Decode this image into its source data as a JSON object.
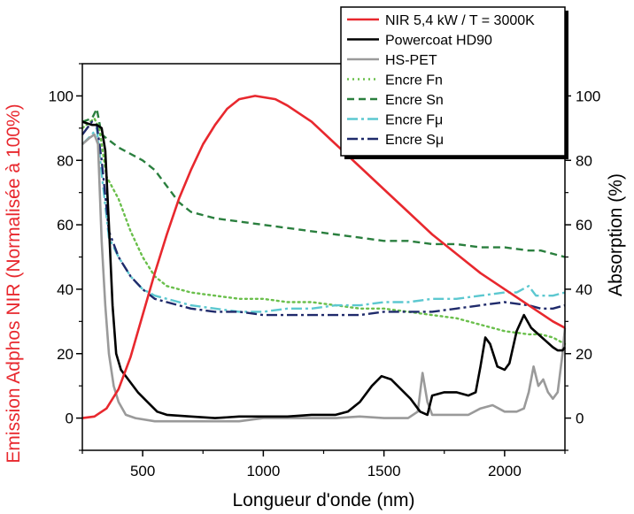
{
  "chart_data": {
    "type": "line",
    "xlabel": "Longueur d'onde (nm)",
    "ylabel_left": "Emission Adphos NIR (Normalisée à 100%)",
    "ylabel_right": "Absorption (%)",
    "xlim": [
      250,
      2250
    ],
    "ylim_left": [
      -10,
      110
    ],
    "ylim_right": [
      -10,
      110
    ],
    "x_ticks": [
      500,
      1000,
      1500,
      2000
    ],
    "y_ticks_left": [
      0,
      20,
      40,
      60,
      80,
      100
    ],
    "y_ticks_right": [
      0,
      20,
      40,
      60,
      80,
      100
    ],
    "legend_position": "top-right",
    "colors": {
      "nir": "#e8282e",
      "powercoat": "#000000",
      "hspet": "#9a9a9a",
      "fn": "#6abf4b",
      "sn": "#2a7f3e",
      "fmu": "#5cc8d0",
      "smu": "#1f2a6b",
      "left_axis": "#e8282e"
    },
    "series": [
      {
        "name": "NIR 5,4 kW / T = 3000K",
        "axis": "left",
        "style": "solid",
        "color": "#e8282e",
        "points": [
          [
            250,
            0
          ],
          [
            300,
            0.5
          ],
          [
            350,
            3
          ],
          [
            400,
            9
          ],
          [
            450,
            19
          ],
          [
            500,
            32
          ],
          [
            550,
            45
          ],
          [
            600,
            57
          ],
          [
            650,
            68
          ],
          [
            700,
            77
          ],
          [
            750,
            85
          ],
          [
            800,
            91
          ],
          [
            850,
            96
          ],
          [
            900,
            99
          ],
          [
            966,
            100
          ],
          [
            1050,
            99
          ],
          [
            1100,
            97
          ],
          [
            1200,
            92
          ],
          [
            1300,
            85
          ],
          [
            1400,
            78
          ],
          [
            1500,
            71
          ],
          [
            1600,
            64
          ],
          [
            1700,
            57
          ],
          [
            1800,
            51
          ],
          [
            1900,
            45
          ],
          [
            2000,
            40
          ],
          [
            2100,
            35
          ],
          [
            2200,
            30
          ],
          [
            2250,
            28
          ]
        ]
      },
      {
        "name": "Powercoat HD90",
        "axis": "right",
        "style": "solid",
        "color": "#000000",
        "points": [
          [
            250,
            92
          ],
          [
            290,
            91
          ],
          [
            310,
            91
          ],
          [
            330,
            90
          ],
          [
            345,
            83
          ],
          [
            360,
            60
          ],
          [
            375,
            35
          ],
          [
            390,
            20
          ],
          [
            410,
            15
          ],
          [
            440,
            12
          ],
          [
            480,
            8
          ],
          [
            520,
            5
          ],
          [
            560,
            2
          ],
          [
            600,
            1
          ],
          [
            700,
            0.5
          ],
          [
            800,
            0
          ],
          [
            900,
            0.5
          ],
          [
            1000,
            0.5
          ],
          [
            1100,
            0.5
          ],
          [
            1200,
            1
          ],
          [
            1300,
            1
          ],
          [
            1350,
            2
          ],
          [
            1400,
            5
          ],
          [
            1450,
            10
          ],
          [
            1490,
            13
          ],
          [
            1530,
            12
          ],
          [
            1570,
            9
          ],
          [
            1610,
            6
          ],
          [
            1650,
            2
          ],
          [
            1680,
            1
          ],
          [
            1700,
            7
          ],
          [
            1750,
            8
          ],
          [
            1800,
            8
          ],
          [
            1850,
            7
          ],
          [
            1880,
            8
          ],
          [
            1900,
            16
          ],
          [
            1920,
            25
          ],
          [
            1940,
            23
          ],
          [
            1970,
            16
          ],
          [
            2000,
            15
          ],
          [
            2020,
            17
          ],
          [
            2050,
            27
          ],
          [
            2080,
            32
          ],
          [
            2110,
            28
          ],
          [
            2140,
            26
          ],
          [
            2170,
            24
          ],
          [
            2200,
            22
          ],
          [
            2220,
            21
          ],
          [
            2240,
            21
          ],
          [
            2250,
            22
          ]
        ]
      },
      {
        "name": "HS-PET",
        "axis": "right",
        "style": "solid",
        "color": "#9a9a9a",
        "points": [
          [
            250,
            85
          ],
          [
            280,
            87
          ],
          [
            300,
            88
          ],
          [
            315,
            85
          ],
          [
            330,
            55
          ],
          [
            345,
            35
          ],
          [
            360,
            20
          ],
          [
            380,
            10
          ],
          [
            400,
            5
          ],
          [
            430,
            1
          ],
          [
            470,
            0
          ],
          [
            550,
            -1
          ],
          [
            700,
            -1
          ],
          [
            800,
            -1
          ],
          [
            900,
            -1
          ],
          [
            1000,
            0
          ],
          [
            1100,
            0
          ],
          [
            1200,
            0
          ],
          [
            1300,
            0
          ],
          [
            1400,
            0.5
          ],
          [
            1500,
            0
          ],
          [
            1600,
            0
          ],
          [
            1640,
            2
          ],
          [
            1660,
            14
          ],
          [
            1680,
            5
          ],
          [
            1700,
            1
          ],
          [
            1750,
            1
          ],
          [
            1800,
            1
          ],
          [
            1850,
            1
          ],
          [
            1900,
            3
          ],
          [
            1950,
            4
          ],
          [
            2000,
            2
          ],
          [
            2050,
            2
          ],
          [
            2080,
            3
          ],
          [
            2100,
            8
          ],
          [
            2120,
            16
          ],
          [
            2140,
            10
          ],
          [
            2160,
            12
          ],
          [
            2180,
            8
          ],
          [
            2200,
            6
          ],
          [
            2220,
            8
          ],
          [
            2240,
            20
          ],
          [
            2250,
            28
          ]
        ]
      },
      {
        "name": "Encre Fn",
        "axis": "right",
        "style": "dotted",
        "color": "#6abf4b",
        "points": [
          [
            250,
            90
          ],
          [
            300,
            93
          ],
          [
            320,
            90
          ],
          [
            350,
            75
          ],
          [
            400,
            68
          ],
          [
            450,
            58
          ],
          [
            500,
            50
          ],
          [
            550,
            44
          ],
          [
            600,
            41
          ],
          [
            700,
            39
          ],
          [
            800,
            38
          ],
          [
            900,
            37
          ],
          [
            1000,
            37
          ],
          [
            1100,
            36
          ],
          [
            1200,
            36
          ],
          [
            1300,
            35
          ],
          [
            1400,
            34
          ],
          [
            1500,
            34
          ],
          [
            1600,
            33
          ],
          [
            1700,
            32
          ],
          [
            1800,
            31
          ],
          [
            1900,
            29
          ],
          [
            2000,
            27
          ],
          [
            2100,
            26
          ],
          [
            2150,
            26
          ],
          [
            2200,
            25
          ],
          [
            2250,
            23
          ]
        ]
      },
      {
        "name": "Encre Sn",
        "axis": "right",
        "style": "dashed",
        "color": "#2a7f3e",
        "points": [
          [
            250,
            92
          ],
          [
            290,
            93
          ],
          [
            310,
            96
          ],
          [
            330,
            88
          ],
          [
            400,
            84
          ],
          [
            450,
            82
          ],
          [
            500,
            80
          ],
          [
            550,
            77
          ],
          [
            600,
            72
          ],
          [
            650,
            67
          ],
          [
            700,
            64
          ],
          [
            800,
            62
          ],
          [
            900,
            61
          ],
          [
            1000,
            60
          ],
          [
            1100,
            59
          ],
          [
            1200,
            58
          ],
          [
            1300,
            57
          ],
          [
            1400,
            56
          ],
          [
            1500,
            55
          ],
          [
            1600,
            55
          ],
          [
            1700,
            54
          ],
          [
            1800,
            54
          ],
          [
            1900,
            53
          ],
          [
            2000,
            53
          ],
          [
            2100,
            52
          ],
          [
            2150,
            52
          ],
          [
            2200,
            51
          ],
          [
            2250,
            50
          ]
        ]
      },
      {
        "name": "Encre Fμ",
        "axis": "right",
        "style": "dashdot",
        "color": "#5cc8d0",
        "points": [
          [
            250,
            85
          ],
          [
            290,
            88
          ],
          [
            310,
            90
          ],
          [
            330,
            76
          ],
          [
            360,
            56
          ],
          [
            400,
            50
          ],
          [
            450,
            44
          ],
          [
            500,
            40
          ],
          [
            550,
            38
          ],
          [
            600,
            37
          ],
          [
            700,
            35
          ],
          [
            800,
            34
          ],
          [
            900,
            33
          ],
          [
            1000,
            33
          ],
          [
            1100,
            34
          ],
          [
            1200,
            34
          ],
          [
            1300,
            35
          ],
          [
            1400,
            35
          ],
          [
            1500,
            36
          ],
          [
            1600,
            36
          ],
          [
            1700,
            37
          ],
          [
            1800,
            37
          ],
          [
            1900,
            38
          ],
          [
            2000,
            39
          ],
          [
            2050,
            39
          ],
          [
            2100,
            41
          ],
          [
            2130,
            38
          ],
          [
            2200,
            38
          ],
          [
            2250,
            39
          ]
        ]
      },
      {
        "name": "Encre Sμ",
        "axis": "right",
        "style": "dashdotdark",
        "color": "#1f2a6b",
        "points": [
          [
            250,
            88
          ],
          [
            290,
            92
          ],
          [
            310,
            91
          ],
          [
            330,
            80
          ],
          [
            360,
            58
          ],
          [
            400,
            50
          ],
          [
            450,
            44
          ],
          [
            500,
            40
          ],
          [
            550,
            37
          ],
          [
            600,
            36
          ],
          [
            700,
            34
          ],
          [
            800,
            33
          ],
          [
            900,
            33
          ],
          [
            1000,
            32
          ],
          [
            1100,
            32
          ],
          [
            1200,
            32
          ],
          [
            1300,
            32
          ],
          [
            1400,
            32
          ],
          [
            1500,
            33
          ],
          [
            1600,
            33
          ],
          [
            1700,
            33
          ],
          [
            1800,
            34
          ],
          [
            1900,
            35
          ],
          [
            2000,
            36
          ],
          [
            2100,
            35
          ],
          [
            2150,
            34
          ],
          [
            2200,
            34
          ],
          [
            2250,
            35
          ]
        ]
      }
    ]
  }
}
